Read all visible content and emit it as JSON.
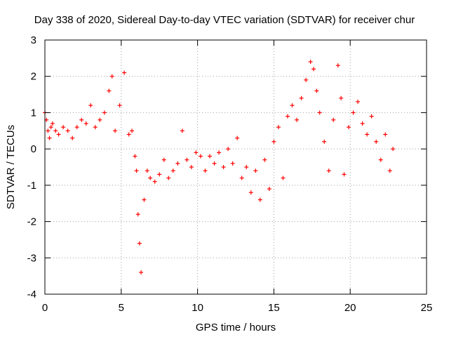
{
  "chart_data": {
    "type": "scatter",
    "title": "Day 338 of 2020, Sidereal Day-to-day VTEC variation (SDTVAR) for receiver chur",
    "xlabel": "GPS time / hours",
    "ylabel": "SDTVAR / TECUs",
    "xlim": [
      0,
      25
    ],
    "ylim": [
      -4,
      3
    ],
    "xticks": [
      0,
      5,
      10,
      15,
      20,
      25
    ],
    "yticks": [
      -4,
      -3,
      -2,
      -1,
      0,
      1,
      2,
      3
    ],
    "grid": true,
    "marker": "+",
    "series": [
      {
        "name": "SDTVAR",
        "color": "#ff0000",
        "x": [
          0.0,
          0.1,
          0.2,
          0.3,
          0.4,
          0.5,
          0.7,
          0.9,
          1.2,
          1.5,
          1.8,
          2.1,
          2.4,
          2.7,
          3.0,
          3.3,
          3.6,
          3.9,
          4.2,
          4.4,
          4.6,
          4.9,
          5.2,
          5.5,
          5.7,
          5.9,
          6.0,
          6.1,
          6.2,
          6.3,
          6.5,
          6.7,
          6.9,
          7.2,
          7.5,
          7.8,
          8.1,
          8.4,
          8.7,
          9.0,
          9.3,
          9.6,
          9.9,
          10.2,
          10.5,
          10.8,
          11.1,
          11.4,
          11.7,
          12.0,
          12.3,
          12.6,
          12.9,
          13.2,
          13.5,
          13.8,
          14.1,
          14.4,
          14.7,
          15.0,
          15.3,
          15.6,
          15.9,
          16.2,
          16.5,
          16.8,
          17.1,
          17.4,
          17.6,
          17.8,
          18.0,
          18.3,
          18.6,
          18.9,
          19.2,
          19.4,
          19.6,
          19.9,
          20.2,
          20.5,
          20.8,
          21.1,
          21.4,
          21.7,
          22.0,
          22.3,
          22.6,
          22.8
        ],
        "y": [
          1.0,
          0.8,
          0.5,
          0.3,
          0.6,
          0.7,
          0.5,
          0.4,
          0.6,
          0.5,
          0.3,
          0.6,
          0.8,
          0.7,
          1.2,
          0.6,
          0.8,
          1.0,
          1.6,
          2.0,
          0.5,
          1.2,
          2.1,
          0.4,
          0.5,
          -0.2,
          -0.6,
          -1.8,
          -2.6,
          -3.4,
          -1.4,
          -0.6,
          -0.8,
          -0.9,
          -0.7,
          -0.3,
          -0.8,
          -0.6,
          -0.4,
          0.5,
          -0.3,
          -0.5,
          -0.1,
          -0.2,
          -0.6,
          -0.2,
          -0.4,
          -0.1,
          -0.5,
          0.0,
          -0.4,
          0.3,
          -0.8,
          -0.5,
          -1.2,
          -0.6,
          -1.4,
          -0.3,
          -1.1,
          0.2,
          0.6,
          -0.8,
          0.9,
          1.2,
          0.8,
          1.4,
          1.9,
          2.4,
          2.2,
          1.6,
          1.0,
          0.2,
          -0.6,
          0.8,
          2.3,
          1.4,
          -0.7,
          0.6,
          1.0,
          1.3,
          0.7,
          0.4,
          0.9,
          0.2,
          -0.3,
          0.4,
          -0.6,
          0.0
        ]
      }
    ]
  }
}
